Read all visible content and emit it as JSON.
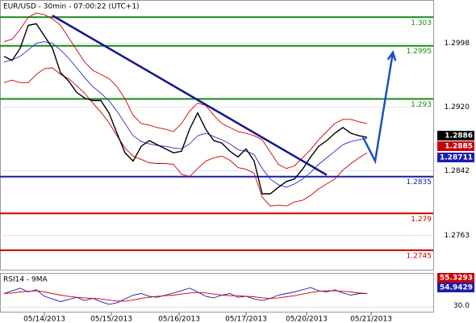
{
  "chart_data": {
    "type": "line",
    "title": "EUR/USD - 30min - 07:00:22 (UTC+1)",
    "xlim": [
      -0.5,
      53.2
    ],
    "xticks": [
      {
        "value": 5,
        "label": "05/14/2013"
      },
      {
        "value": 13.3,
        "label": "05/15/2013"
      },
      {
        "value": 21.7,
        "label": "05/16/2013"
      },
      {
        "value": 30,
        "label": "05/17/2013"
      },
      {
        "value": 37.5,
        "label": "05/20/2013"
      },
      {
        "value": 45.5,
        "label": "05/21/2013"
      }
    ],
    "ylim": [
      1.273,
      1.3051
    ],
    "yticks": [
      1.2998,
      {
        "value": 1.292,
        "label": "1.2920"
      },
      1.2842,
      1.2763
    ],
    "grid": true,
    "series": [
      {
        "name": "price",
        "color": "#000000",
        "values": [
          1.2982,
          1.2977,
          1.2992,
          1.302,
          1.3022,
          1.3007,
          1.2992,
          1.2962,
          1.2952,
          1.2938,
          1.2931,
          1.2928,
          1.2928,
          1.2913,
          1.2888,
          1.2864,
          1.2854,
          1.2872,
          1.2879,
          1.2874,
          1.2869,
          1.2864,
          1.2866,
          1.2893,
          1.2913,
          1.2893,
          1.2879,
          1.2876,
          1.2866,
          1.2859,
          1.2869,
          1.2854,
          1.2814,
          1.2814,
          1.2822,
          1.2829,
          1.2832,
          1.2844,
          1.2859,
          1.2872,
          1.2879,
          1.2888,
          1.2895,
          1.2888,
          1.2885,
          1.2883
        ]
      },
      {
        "name": "ma",
        "color": "#2a2ad0",
        "values": [
          1.2975,
          1.2978,
          1.2982,
          1.299,
          1.2998,
          1.3,
          1.2998,
          1.299,
          1.298,
          1.2968,
          1.2956,
          1.2945,
          1.2937,
          1.2928,
          1.2915,
          1.29,
          1.2885,
          1.2878,
          1.2875,
          1.2873,
          1.2872,
          1.287,
          1.2869,
          1.2875,
          1.2885,
          1.2888,
          1.2884,
          1.288,
          1.2875,
          1.2868,
          1.2866,
          1.2862,
          1.2845,
          1.2832,
          1.2825,
          1.2822,
          1.2826,
          1.2832,
          1.284,
          1.285,
          1.2858,
          1.2866,
          1.2874,
          1.2878,
          1.288,
          1.2882
        ]
      },
      {
        "name": "upper",
        "color": "#cc0000",
        "values": [
          1.3,
          1.3003,
          1.3015,
          1.303,
          1.3035,
          1.3033,
          1.3028,
          1.302,
          1.3005,
          1.299,
          1.2975,
          1.2965,
          1.296,
          1.2955,
          1.2945,
          1.293,
          1.291,
          1.29,
          1.2898,
          1.2895,
          1.2893,
          1.289,
          1.29,
          1.2915,
          1.2925,
          1.2922,
          1.291,
          1.29,
          1.2895,
          1.289,
          1.2888,
          1.2885,
          1.288,
          1.2865,
          1.285,
          1.2845,
          1.2848,
          1.2858,
          1.2868,
          1.288,
          1.289,
          1.29,
          1.2905,
          1.2905,
          1.2902,
          1.29
        ]
      },
      {
        "name": "lower",
        "color": "#cc0000",
        "values": [
          1.295,
          1.2953,
          1.295,
          1.295,
          1.296,
          1.2967,
          1.2968,
          1.296,
          1.2955,
          1.2946,
          1.2937,
          1.2925,
          1.2914,
          1.2901,
          1.2885,
          1.287,
          1.286,
          1.2856,
          1.2852,
          1.2851,
          1.2851,
          1.285,
          1.2838,
          1.2835,
          1.2845,
          1.2854,
          1.2858,
          1.286,
          1.2855,
          1.2846,
          1.2844,
          1.2839,
          1.281,
          1.2799,
          1.28,
          1.2799,
          1.2804,
          1.2806,
          1.2812,
          1.282,
          1.2826,
          1.2832,
          1.2843,
          1.2851,
          1.2858,
          1.2864
        ]
      }
    ],
    "levels": [
      {
        "value": 1.303,
        "color": "#1a8a1a"
      },
      {
        "value": 1.2995,
        "color": "#1a8a1a"
      },
      {
        "value": 1.293,
        "color": "#1a8a1a"
      },
      {
        "value": 1.2835,
        "color": "#1c1cb0"
      },
      {
        "value": 1.279,
        "color": "#cc0000"
      },
      {
        "value": 1.2745,
        "color": "#cc0000"
      }
    ],
    "trendline": {
      "color": "#14148c",
      "x": [
        6,
        40
      ],
      "values": [
        1.3032,
        1.2837
      ]
    },
    "projection": {
      "color": "#1c50c8",
      "x": [
        44.5,
        46,
        48.2
      ],
      "values": [
        1.2883,
        1.2854,
        1.2987
      ]
    },
    "price_tags": [
      {
        "value": 1.2886,
        "color": "#000000"
      },
      {
        "value": 1.2885,
        "color": "#cc0000"
      },
      {
        "value": 1.28711,
        "color": "#1c1cb0"
      }
    ],
    "rsi": {
      "label": "RSI14 - 9MA",
      "ylim": [
        20,
        90
      ],
      "yticks": [
        {
          "value": 30,
          "label": "30.0"
        }
      ],
      "series": [
        {
          "name": "rsi",
          "color": "#1c1cb0",
          "values": [
            55,
            60,
            65,
            58,
            62,
            50,
            45,
            40,
            44,
            48,
            42,
            46,
            40,
            35,
            38,
            45,
            52,
            55,
            50,
            48,
            52,
            56,
            60,
            65,
            58,
            50,
            47,
            52,
            55,
            48,
            50,
            45,
            42,
            46,
            52,
            55,
            58,
            62,
            66,
            60,
            58,
            62,
            56,
            52,
            55,
            55
          ]
        },
        {
          "name": "rsi-ma",
          "color": "#cc0000",
          "values": [
            55,
            56,
            58,
            59,
            60,
            58,
            55,
            52,
            50,
            48,
            47,
            46,
            45,
            43,
            41,
            41,
            43,
            46,
            48,
            50,
            51,
            52,
            54,
            56,
            57,
            56,
            54,
            52,
            51,
            51,
            50,
            49,
            47,
            46,
            47,
            49,
            51,
            54,
            57,
            59,
            60,
            60,
            59,
            58,
            56,
            55
          ]
        }
      ],
      "tags": [
        {
          "value": 55.3293,
          "color": "#cc0000"
        },
        {
          "value": 54.9429,
          "color": "#1c1cb0"
        }
      ]
    }
  }
}
